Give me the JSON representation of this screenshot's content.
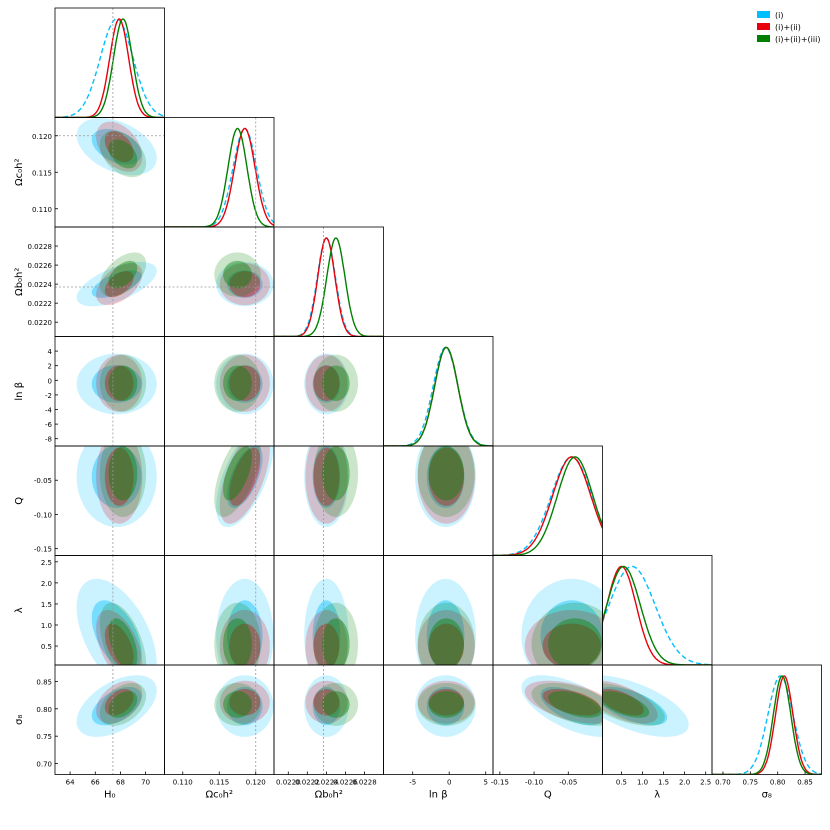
{
  "chart_data": {
    "type": "corner",
    "parameters": [
      {
        "key": "H0",
        "tick_values": [
          64,
          66,
          68,
          70
        ],
        "tick_labels": [
          "64",
          "66",
          "68",
          "70"
        ],
        "range": [
          62.8,
          71.5
        ]
      },
      {
        "key": "omch2",
        "tick_values": [
          0.11,
          0.115,
          0.12
        ],
        "tick_labels": [
          "0.110",
          "0.115",
          "0.120"
        ],
        "range": [
          0.1075,
          0.1225
        ]
      },
      {
        "key": "ombh2",
        "tick_values": [
          0.022,
          0.0222,
          0.0224,
          0.0226,
          0.0228
        ],
        "tick_labels": [
          "0.0220",
          "0.0222",
          "0.0224",
          "0.0226",
          "0.0228"
        ],
        "range": [
          0.02185,
          0.023
        ]
      },
      {
        "key": "lnbeta",
        "tick_values": [
          -8,
          -6,
          -4,
          -2,
          0,
          2,
          4
        ],
        "tick_labels": [
          "-8",
          "-6",
          "-4",
          "-2",
          "0",
          "2",
          "4"
        ],
        "x_tick_values": [
          -5,
          0,
          5
        ],
        "x_tick_labels": [
          "-5",
          "0",
          "5"
        ],
        "range": [
          -9,
          6
        ]
      },
      {
        "key": "Q",
        "tick_values": [
          -0.15,
          -0.1,
          -0.05
        ],
        "tick_labels": [
          "-0.15",
          "-0.10",
          "-0.05"
        ],
        "range": [
          -0.16,
          0
        ]
      },
      {
        "key": "lambda",
        "tick_values": [
          0.5,
          1.0,
          1.5,
          2.0,
          2.5
        ],
        "tick_labels": [
          "0.5",
          "1.0",
          "1.5",
          "2.0",
          "2.5"
        ],
        "x_tick_values": [
          0.5,
          1.0,
          1.5,
          2.0,
          2.5
        ],
        "x_tick_labels": [
          "0.5",
          "1.0",
          "1.5",
          "2.0",
          "2.5"
        ],
        "range": [
          0.05,
          2.65
        ]
      },
      {
        "key": "sigma8",
        "tick_values": [
          0.7,
          0.75,
          0.8,
          0.85
        ],
        "tick_labels": [
          "0.70",
          "0.75",
          "0.80",
          "0.85"
        ],
        "range": [
          0.68,
          0.88
        ]
      }
    ],
    "reference_values": {
      "H0": 67.4,
      "omch2": 0.12,
      "ombh2": 0.02237
    },
    "series": [
      {
        "name": "(i)",
        "color": "#00bfff",
        "linestyle": "dashed",
        "mean": [
          67.7,
          0.1185,
          0.0224,
          -0.5,
          -0.045,
          0.75,
          0.805
        ],
        "sigma": [
          1.3,
          0.0016,
          9.5e-05,
          1.7,
          0.03,
          0.55,
          0.023
        ],
        "rho": [
          [
            0,
            2,
            0.6
          ],
          [
            0,
            5,
            -0.5
          ],
          [
            0,
            6,
            0.5
          ],
          [
            1,
            4,
            0.6
          ],
          [
            4,
            6,
            -0.6
          ],
          [
            5,
            6,
            -0.6
          ],
          [
            0,
            1,
            -0.4
          ]
        ]
      },
      {
        "name": "(i)+(ii)",
        "color": "#e8000b",
        "linestyle": "solid",
        "mean": [
          67.9,
          0.1185,
          0.0224,
          -0.4,
          -0.045,
          0.5,
          0.812
        ],
        "sigma": [
          0.75,
          0.0014,
          9e-05,
          1.6,
          0.028,
          0.35,
          0.016
        ],
        "rho": [
          [
            0,
            2,
            0.5
          ],
          [
            0,
            5,
            -0.5
          ],
          [
            0,
            6,
            0.4
          ],
          [
            1,
            4,
            0.6
          ],
          [
            4,
            6,
            -0.5
          ],
          [
            5,
            6,
            -0.6
          ],
          [
            0,
            1,
            -0.4
          ]
        ]
      },
      {
        "name": "(i)+(ii)+(iii)",
        "color": "#008000",
        "linestyle": "solid",
        "mean": [
          68.2,
          0.1175,
          0.0225,
          -0.4,
          -0.04,
          0.55,
          0.808
        ],
        "sigma": [
          0.75,
          0.0013,
          9.5e-05,
          1.6,
          0.026,
          0.4,
          0.016
        ],
        "rho": [
          [
            0,
            2,
            0.5
          ],
          [
            0,
            5,
            -0.5
          ],
          [
            0,
            6,
            0.4
          ],
          [
            1,
            4,
            0.6
          ],
          [
            4,
            6,
            -0.5
          ],
          [
            5,
            6,
            -0.6
          ],
          [
            0,
            1,
            -0.4
          ]
        ]
      }
    ]
  },
  "labels": {
    "H0": "H₀",
    "omch2": "Ωc₀h²",
    "ombh2": "Ωb₀h²",
    "lnbeta": "ln β",
    "Q": "Q",
    "lambda": "λ",
    "sigma8": "σ₈"
  },
  "legend": [
    {
      "label": "(i)",
      "color": "#00bfff"
    },
    {
      "label": "(i)+(ii)",
      "color": "#e8000b"
    },
    {
      "label": "(i)+(ii)+(iii)",
      "color": "#008000"
    }
  ]
}
